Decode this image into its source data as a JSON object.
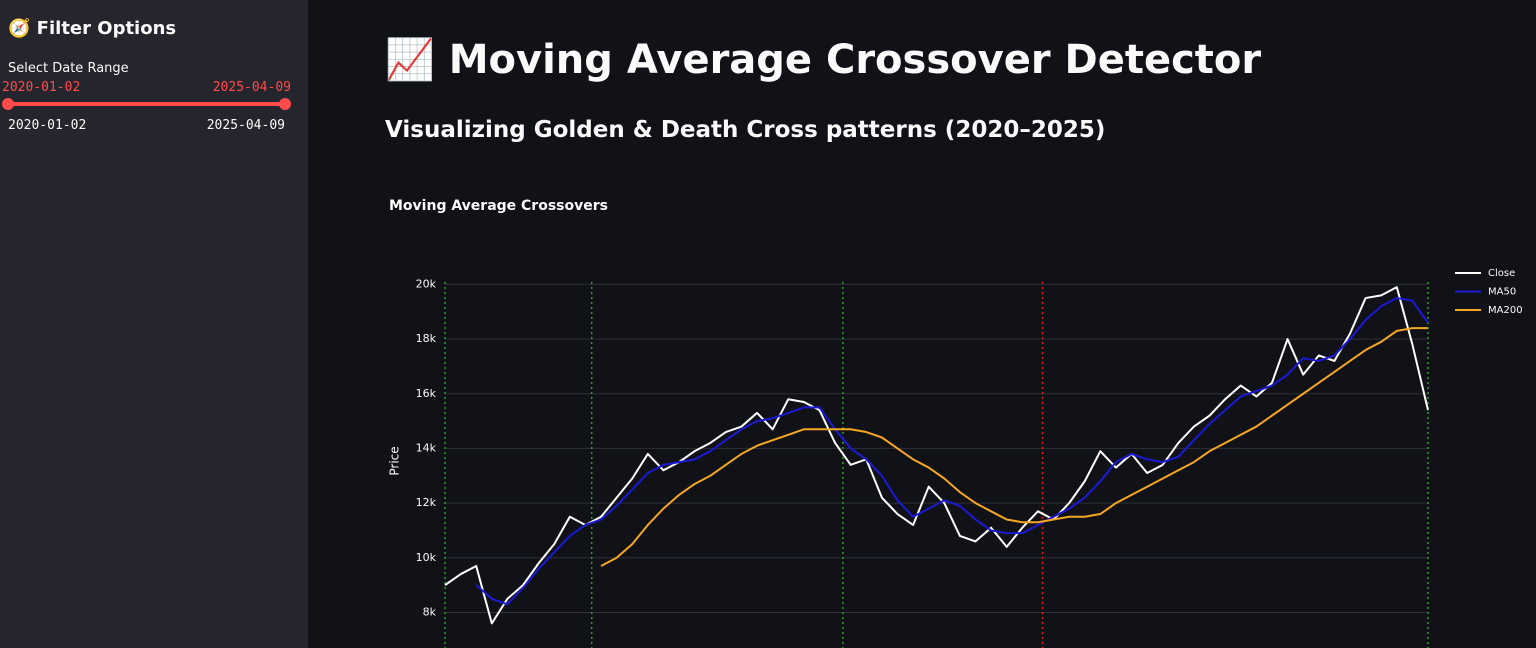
{
  "sidebar": {
    "title": "🧭 Filter Options",
    "date_range": {
      "label": "Select Date Range",
      "start": "2020-01-02",
      "end": "2025-04-09",
      "min": "2020-01-02",
      "max": "2025-04-09"
    }
  },
  "header": {
    "title": "📈 Moving Average Crossover Detector",
    "subtitle": "Visualizing Golden & Death Cross patterns (2020–2025)"
  },
  "chart_data": {
    "type": "line",
    "title": "Moving Average Crossovers",
    "y_label": "Price",
    "categories": [
      null,
      null,
      null,
      null,
      null,
      null,
      null,
      null,
      null,
      null,
      null,
      null,
      null,
      null,
      null,
      null,
      null,
      null,
      null,
      null,
      null,
      null,
      null,
      null,
      null,
      null,
      null,
      null,
      null,
      null,
      null,
      null,
      null,
      null,
      null,
      null,
      null,
      null,
      null,
      null,
      null,
      null,
      null,
      null,
      null,
      null,
      null,
      null,
      null,
      null,
      null,
      null,
      null,
      null,
      null,
      null,
      null,
      null,
      null,
      null,
      null,
      null,
      null,
      null
    ],
    "series": [
      {
        "name": "Close",
        "color": "#ffffff",
        "values": [
          9000,
          9400,
          9700,
          7600,
          8500,
          9000,
          9800,
          10500,
          11500,
          11200,
          11500,
          12200,
          12900,
          13800,
          13200,
          13500,
          13900,
          14200,
          14600,
          14800,
          15300,
          14700,
          15800,
          15700,
          15400,
          14200,
          13400,
          13600,
          12200,
          11600,
          11200,
          12600,
          12000,
          10800,
          10600,
          11100,
          10400,
          11100,
          11700,
          11400,
          12000,
          12800,
          13900,
          13300,
          13800,
          13100,
          13400,
          14200,
          14800,
          15200,
          15800,
          16300,
          15900,
          16400,
          18000,
          16700,
          17400,
          17200,
          18200,
          19500,
          19600,
          19900,
          17800,
          15400
        ]
      },
      {
        "name": "MA50",
        "color": "#1a1ad6",
        "values": [
          null,
          null,
          9000,
          8500,
          8300,
          8900,
          9600,
          10200,
          10800,
          11200,
          11400,
          11900,
          12500,
          13100,
          13400,
          13500,
          13600,
          13900,
          14300,
          14700,
          15000,
          15100,
          15300,
          15500,
          15500,
          14700,
          14000,
          13600,
          13000,
          12100,
          11500,
          11800,
          12100,
          11900,
          11400,
          11000,
          10900,
          10900,
          11200,
          11500,
          11800,
          12200,
          12800,
          13500,
          13800,
          13600,
          13500,
          13700,
          14300,
          14900,
          15400,
          15900,
          16100,
          16300,
          16700,
          17300,
          17200,
          17400,
          18000,
          18700,
          19200,
          19500,
          19400,
          18600
        ]
      },
      {
        "name": "MA200",
        "color": "#f5a623",
        "values": [
          null,
          null,
          null,
          null,
          null,
          null,
          null,
          null,
          null,
          null,
          9700,
          10000,
          10500,
          11200,
          11800,
          12300,
          12700,
          13000,
          13400,
          13800,
          14100,
          14300,
          14500,
          14700,
          14700,
          14700,
          14700,
          14600,
          14400,
          14000,
          13600,
          13300,
          12900,
          12400,
          12000,
          11700,
          11400,
          11300,
          11300,
          11400,
          11500,
          11500,
          11600,
          12000,
          12300,
          12600,
          12900,
          13200,
          13500,
          13900,
          14200,
          14500,
          14800,
          15200,
          15600,
          16000,
          16400,
          16800,
          17200,
          17600,
          17900,
          18300,
          18400,
          18400
        ]
      }
    ],
    "vlines": [
      {
        "x": 0,
        "color": "#2ca02c"
      },
      {
        "x": 9.4,
        "color": "#2ca02c"
      },
      {
        "x": 25.5,
        "color": "#2ca02c"
      },
      {
        "x": 38.3,
        "color": "#e02020"
      },
      {
        "x": 63,
        "color": "#2ca02c"
      }
    ],
    "ylim": [
      6700,
      20600
    ],
    "yticks": [
      {
        "value": 8000,
        "label": "8k"
      },
      {
        "value": 10000,
        "label": "10k"
      },
      {
        "value": 12000,
        "label": "12k"
      },
      {
        "value": 14000,
        "label": "14k"
      },
      {
        "value": 16000,
        "label": "16k"
      },
      {
        "value": 18000,
        "label": "18k"
      },
      {
        "value": 20000,
        "label": "20k"
      }
    ],
    "grid": true,
    "legend": "top-right"
  }
}
